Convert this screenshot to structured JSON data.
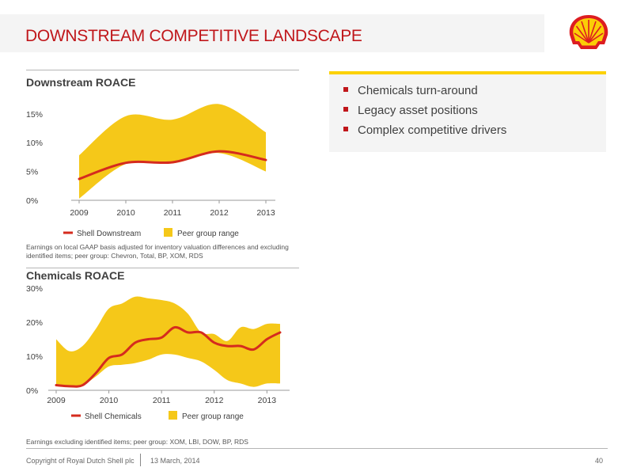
{
  "header": {
    "title": "DOWNSTREAM COMPETITIVE LANDSCAPE"
  },
  "logo": {
    "name": "shell-pecten-logo",
    "colors": {
      "red": "#dd1d21",
      "yellow": "#fbce07"
    }
  },
  "colors": {
    "accent_red": "#c0171b",
    "range_yellow": "#f5c819",
    "line_red": "#d52b1e",
    "box_bar": "#fcd100"
  },
  "downstream": {
    "title": "Downstream ROACE",
    "footnote": "Earnings on local GAAP basis adjusted for inventory valuation differences and excluding identified items; peer group: Chevron, Total, BP, XOM, RDS",
    "legend": {
      "line": "Shell Downstream",
      "range": "Peer group range"
    }
  },
  "chemicals": {
    "title": "Chemicals ROACE",
    "footnote": "Earnings excluding identified items; peer group: XOM, LBI, DOW, BP, RDS",
    "legend": {
      "line": "Shell Chemicals",
      "range": "Peer group range"
    }
  },
  "bullets": [
    "Chemicals turn-around",
    "Legacy asset positions",
    "Complex competitive drivers"
  ],
  "footer": {
    "copyright": "Copyright of Royal Dutch Shell plc",
    "date": "13 March, 2014",
    "page": "40"
  },
  "chart_data": [
    {
      "type": "area",
      "title": "Downstream ROACE",
      "x": [
        2009,
        2010,
        2011,
        2012,
        2013
      ],
      "xticks": [
        "2009",
        "2010",
        "2011",
        "2012",
        "2013"
      ],
      "yticks": [
        "0%",
        "5%",
        "10%",
        "15%"
      ],
      "ytick_values": [
        0,
        5,
        10,
        15
      ],
      "ylim": [
        0,
        18
      ],
      "grid": false,
      "legend_position": "bottom",
      "series": [
        {
          "name": "Shell Downstream",
          "kind": "line",
          "values": [
            3.7,
            6.5,
            6.6,
            8.5,
            7.0
          ]
        },
        {
          "name": "Peer group range",
          "kind": "range",
          "low": [
            0.3,
            6.3,
            6.4,
            8.2,
            5.0
          ],
          "high": [
            7.8,
            14.6,
            14.0,
            16.7,
            11.8
          ]
        }
      ]
    },
    {
      "type": "area",
      "title": "Chemicals ROACE",
      "x": [
        2009,
        2009.25,
        2009.5,
        2009.75,
        2010,
        2010.25,
        2010.5,
        2010.75,
        2011,
        2011.25,
        2011.5,
        2011.75,
        2012,
        2012.25,
        2012.5,
        2012.75,
        2013,
        2013.25
      ],
      "xticks": [
        "2009",
        "2010",
        "2011",
        "2012",
        "2013"
      ],
      "xtick_values": [
        2009,
        2010,
        2011,
        2012,
        2013
      ],
      "yticks": [
        "0%",
        "10%",
        "20%",
        "30%"
      ],
      "ytick_values": [
        0,
        10,
        20,
        30
      ],
      "ylim": [
        0,
        30
      ],
      "grid": false,
      "legend_position": "bottom",
      "series": [
        {
          "name": "Shell Chemicals",
          "kind": "line",
          "values": [
            1.5,
            1.2,
            1.5,
            5.0,
            9.5,
            10.5,
            14.0,
            15.0,
            15.5,
            18.5,
            17.0,
            17.0,
            14.0,
            13.0,
            13.0,
            12.0,
            15.0,
            17.0
          ]
        },
        {
          "name": "Peer group range",
          "kind": "range",
          "low": [
            1.5,
            1.0,
            1.5,
            4.0,
            7.0,
            7.5,
            8.0,
            9.0,
            10.5,
            10.5,
            9.5,
            8.5,
            6.0,
            3.0,
            2.0,
            1.0,
            2.0,
            2.0
          ],
          "high": [
            15.0,
            11.5,
            13.0,
            18.0,
            24.0,
            25.5,
            27.5,
            27.0,
            26.5,
            25.5,
            22.5,
            17.0,
            16.5,
            14.5,
            18.5,
            18.0,
            19.5,
            19.5
          ]
        }
      ]
    }
  ]
}
